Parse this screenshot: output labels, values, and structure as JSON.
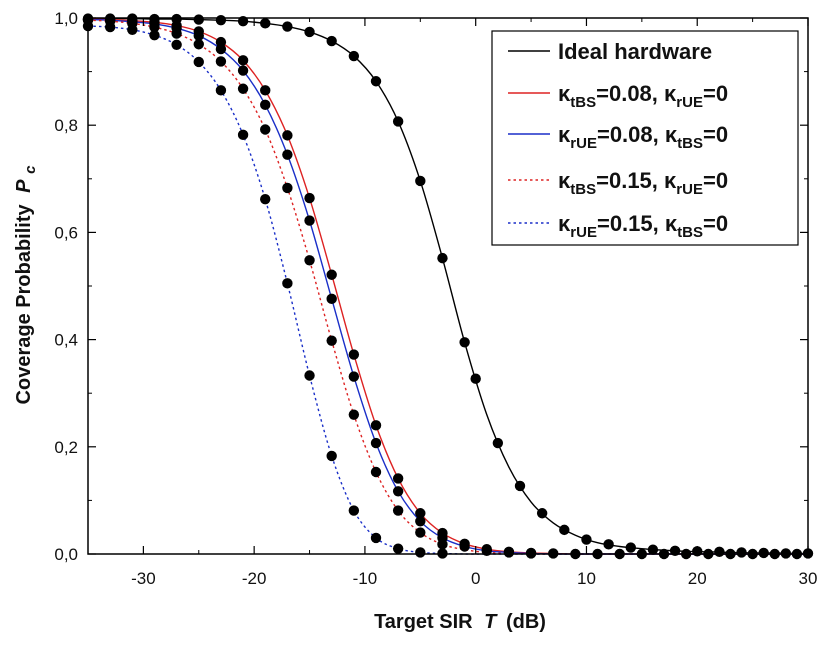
{
  "chart_data": {
    "type": "line",
    "xlabel": "Target SIR",
    "xlabel_var": "T",
    "xlabel_unit": "(dB)",
    "ylabel": "Coverage Probability",
    "ylabel_var": "P",
    "ylabel_sub": "c",
    "xlim": [
      -35,
      30
    ],
    "ylim": [
      0,
      1
    ],
    "x_ticks": [
      -30,
      -20,
      -10,
      0,
      10,
      20,
      30
    ],
    "x_tick_labels": [
      "-30",
      "-20",
      "-10",
      "0",
      "10",
      "20",
      "30"
    ],
    "y_ticks": [
      0,
      0.2,
      0.4,
      0.6,
      0.8,
      1.0
    ],
    "y_tick_labels": [
      "0,0",
      "0,2",
      "0,4",
      "0,6",
      "0,8",
      "1,0"
    ],
    "legend_position": "top-right",
    "grid": false,
    "series": [
      {
        "name": "Ideal hardware",
        "legend": {
          "sym": "",
          "sub1": "",
          "mid": "Ideal hardware",
          "sub2": "",
          "end": ""
        },
        "color": "#000000",
        "dash": "solid",
        "x": [
          -35,
          -33,
          -31,
          -29,
          -27,
          -25,
          -23,
          -21,
          -19,
          -17,
          -15,
          -13,
          -11,
          -9,
          -7,
          -5,
          -3,
          -1,
          1,
          3,
          5,
          7,
          9,
          11,
          13,
          15,
          17,
          19,
          21,
          23,
          25,
          27,
          29,
          30
        ],
        "y": [
          0.999,
          0.999,
          0.999,
          0.998,
          0.998,
          0.997,
          0.996,
          0.994,
          0.99,
          0.984,
          0.974,
          0.957,
          0.929,
          0.882,
          0.807,
          0.696,
          0.552,
          0.395,
          0.26,
          0.162,
          0.097,
          0.058,
          0.035,
          0.021,
          0.014,
          0.01,
          0.007,
          0.005,
          0.004,
          0.003,
          0.002,
          0.002,
          0.001,
          0.001
        ]
      },
      {
        "name": "κtBS=0.08, κrUE=0",
        "legend": {
          "sym": "κ",
          "sub1": "tBS",
          "mid": "=0.08, κ",
          "sub2": "rUE",
          "end": "=0"
        },
        "color": "#dd2222",
        "dash": "solid",
        "x": [
          -35,
          -33,
          -31,
          -29,
          -27,
          -25,
          -23,
          -21,
          -19,
          -17,
          -15,
          -13,
          -11,
          -9,
          -7,
          -5,
          -3,
          -1,
          1,
          3,
          5,
          7,
          9,
          11,
          13,
          15,
          17,
          19,
          21,
          23,
          25,
          27,
          29,
          30
        ],
        "y": [
          0.998,
          0.997,
          0.995,
          0.992,
          0.986,
          0.975,
          0.955,
          0.921,
          0.865,
          0.781,
          0.664,
          0.521,
          0.372,
          0.24,
          0.141,
          0.076,
          0.039,
          0.019,
          0.009,
          0.004,
          0.002,
          0.001,
          0,
          0,
          0,
          0,
          0,
          0,
          0,
          0,
          0,
          0,
          0,
          0
        ]
      },
      {
        "name": "κrUE=0.08, κtBS=0",
        "legend": {
          "sym": "κ",
          "sub1": "rUE",
          "mid": "=0.08, κ",
          "sub2": "tBS",
          "end": "=0"
        },
        "color": "#1a2fc8",
        "dash": "solid",
        "x": [
          -35,
          -33,
          -31,
          -29,
          -27,
          -25,
          -23,
          -21,
          -19,
          -17,
          -15,
          -13,
          -11,
          -9,
          -7,
          -5,
          -3,
          -1,
          1,
          3,
          5,
          7,
          9,
          11,
          13,
          15,
          17,
          19,
          21,
          23,
          25,
          27,
          29,
          30
        ],
        "y": [
          0.997,
          0.996,
          0.993,
          0.989,
          0.981,
          0.967,
          0.942,
          0.902,
          0.838,
          0.745,
          0.622,
          0.476,
          0.331,
          0.207,
          0.117,
          0.061,
          0.03,
          0.014,
          0.006,
          0.003,
          0.001,
          0,
          0,
          0,
          0,
          0,
          0,
          0,
          0,
          0,
          0,
          0,
          0,
          0
        ]
      },
      {
        "name": "κtBS=0.15, κrUE=0",
        "legend": {
          "sym": " κ",
          "sub1": "tBS",
          "mid": "=0.15, κ",
          "sub2": "rUE",
          "end": "=0"
        },
        "color": "#dd2222",
        "dash": "dotted",
        "x": [
          -35,
          -33,
          -31,
          -29,
          -27,
          -25,
          -23,
          -21,
          -19,
          -17,
          -15,
          -13,
          -11,
          -9,
          -7,
          -5,
          -3,
          -1,
          1,
          3,
          5,
          7,
          9,
          11,
          13,
          15,
          17,
          19,
          21,
          23,
          25,
          27,
          29,
          30
        ],
        "y": [
          0.996,
          0.994,
          0.99,
          0.983,
          0.971,
          0.951,
          0.919,
          0.868,
          0.792,
          0.683,
          0.548,
          0.398,
          0.26,
          0.153,
          0.081,
          0.04,
          0.018,
          0.008,
          0.003,
          0.001,
          0,
          0,
          0,
          0,
          0,
          0,
          0,
          0,
          0,
          0,
          0,
          0,
          0,
          0
        ]
      },
      {
        "name": "κrUE=0.15, κtBS=0",
        "legend": {
          "sym": "κ",
          "sub1": "rUE",
          "mid": "=0.15, κ",
          "sub2": "tBS",
          "end": "=0"
        },
        "color": "#1a2fc8",
        "dash": "dotted",
        "x": [
          -35,
          -33,
          -31,
          -29,
          -27,
          -25,
          -23,
          -21,
          -19,
          -17,
          -15,
          -13,
          -11,
          -9,
          -7,
          -5,
          -3,
          -1,
          1,
          3,
          5,
          7,
          9,
          11,
          13,
          15,
          17,
          19,
          21,
          23,
          25,
          27,
          29,
          30
        ],
        "y": [
          0.985,
          0.983,
          0.978,
          0.968,
          0.95,
          0.918,
          0.865,
          0.782,
          0.662,
          0.505,
          0.333,
          0.183,
          0.081,
          0.03,
          0.01,
          0.003,
          0.001,
          0,
          0,
          0,
          0,
          0,
          0,
          0,
          0,
          0,
          0,
          0,
          0,
          0,
          0,
          0,
          0,
          0
        ]
      }
    ],
    "markers": {
      "style": "filled-circle",
      "color": "#000000",
      "series": [
        {
          "x": [
            -35,
            -33,
            -31,
            -29,
            -27,
            -25,
            -23,
            -21,
            -19,
            -17,
            -15,
            -13,
            -11,
            -9,
            -7,
            -5,
            -3,
            -1,
            0,
            2,
            4,
            6,
            8,
            10,
            12,
            14,
            16,
            18,
            20,
            22,
            24,
            26,
            28,
            30
          ],
          "y": [
            0.999,
            0.999,
            0.999,
            0.998,
            0.998,
            0.997,
            0.996,
            0.994,
            0.99,
            0.984,
            0.974,
            0.957,
            0.929,
            0.882,
            0.807,
            0.696,
            0.552,
            0.395,
            0.327,
            0.207,
            0.127,
            0.076,
            0.045,
            0.027,
            0.018,
            0.012,
            0.008,
            0.006,
            0.005,
            0.004,
            0.003,
            0.002,
            0.001,
            0.001
          ]
        },
        {
          "x": [
            -35,
            -33,
            -31,
            -29,
            -27,
            -25,
            -23,
            -21,
            -19,
            -17,
            -15,
            -13,
            -11,
            -9,
            -7,
            -5,
            -3,
            -1,
            1,
            3,
            5,
            7,
            9,
            11,
            13,
            15,
            17,
            19,
            21,
            23,
            25,
            27,
            29
          ],
          "y": [
            0.998,
            0.997,
            0.995,
            0.992,
            0.986,
            0.975,
            0.955,
            0.921,
            0.865,
            0.781,
            0.664,
            0.521,
            0.372,
            0.24,
            0.141,
            0.076,
            0.039,
            0.019,
            0.009,
            0.004,
            0.002,
            0.001,
            0,
            0,
            0,
            0,
            0,
            0,
            0,
            0,
            0,
            0,
            0
          ]
        },
        {
          "x": [
            -35,
            -33,
            -31,
            -29,
            -27,
            -25,
            -23,
            -21,
            -19,
            -17,
            -15,
            -13,
            -11,
            -9,
            -7,
            -5,
            -3,
            -1,
            1,
            3,
            5
          ],
          "y": [
            0.997,
            0.996,
            0.993,
            0.989,
            0.981,
            0.967,
            0.942,
            0.902,
            0.838,
            0.745,
            0.622,
            0.476,
            0.331,
            0.207,
            0.117,
            0.061,
            0.03,
            0.014,
            0.006,
            0.003,
            0.001
          ]
        },
        {
          "x": [
            -35,
            -33,
            -31,
            -29,
            -27,
            -25,
            -23,
            -21,
            -19,
            -17,
            -15,
            -13,
            -11,
            -9,
            -7,
            -5,
            -3
          ],
          "y": [
            0.996,
            0.994,
            0.99,
            0.983,
            0.971,
            0.951,
            0.919,
            0.868,
            0.792,
            0.683,
            0.548,
            0.398,
            0.26,
            0.153,
            0.081,
            0.04,
            0.018
          ]
        },
        {
          "x": [
            -35,
            -33,
            -31,
            -29,
            -27,
            -25,
            -23,
            -21,
            -19,
            -17,
            -15,
            -13,
            -11,
            -9,
            -7,
            -5,
            -3
          ],
          "y": [
            0.985,
            0.983,
            0.978,
            0.968,
            0.95,
            0.918,
            0.865,
            0.782,
            0.662,
            0.505,
            0.333,
            0.183,
            0.081,
            0.03,
            0.01,
            0.003,
            0.001
          ]
        }
      ]
    }
  }
}
